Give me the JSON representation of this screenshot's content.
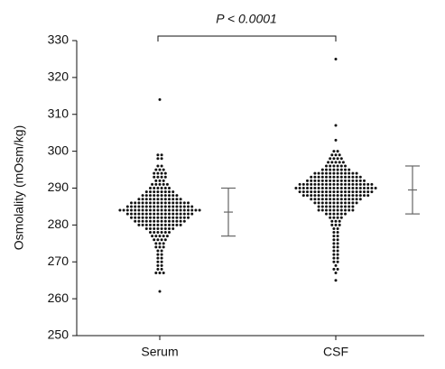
{
  "chart_data": {
    "type": "swarm",
    "ylabel": "Osmolality (mOsm/kg)",
    "annotation": "P < 0.0001",
    "categories": [
      "Serum",
      "CSF"
    ],
    "ylim": [
      250,
      330
    ],
    "yticks": [
      250,
      260,
      270,
      280,
      290,
      300,
      310,
      320,
      330
    ],
    "color": "#111111",
    "error_color": "#666666",
    "groups": [
      {
        "values": [
          262,
          267,
          267,
          267,
          268,
          268,
          269,
          269,
          270,
          270,
          271,
          271,
          272,
          272,
          273,
          273,
          274,
          274,
          274,
          275,
          275,
          275,
          276,
          276,
          276,
          276,
          277,
          277,
          277,
          277,
          277,
          278,
          278,
          278,
          278,
          278,
          278,
          279,
          279,
          279,
          279,
          279,
          279,
          279,
          279,
          280,
          280,
          280,
          280,
          280,
          280,
          280,
          280,
          280,
          280,
          280,
          280,
          281,
          281,
          281,
          281,
          281,
          281,
          281,
          281,
          281,
          281,
          281,
          281,
          281,
          281,
          282,
          282,
          282,
          282,
          282,
          282,
          282,
          282,
          282,
          282,
          282,
          282,
          282,
          282,
          282,
          282,
          283,
          283,
          283,
          283,
          283,
          283,
          283,
          283,
          283,
          283,
          283,
          283,
          283,
          283,
          283,
          283,
          283,
          283,
          284,
          284,
          284,
          284,
          284,
          284,
          284,
          284,
          284,
          284,
          284,
          284,
          284,
          284,
          284,
          284,
          284,
          284,
          284,
          284,
          284,
          284,
          285,
          285,
          285,
          285,
          285,
          285,
          285,
          285,
          285,
          285,
          285,
          285,
          285,
          285,
          285,
          285,
          285,
          285,
          286,
          286,
          286,
          286,
          286,
          286,
          286,
          286,
          286,
          286,
          286,
          286,
          286,
          286,
          286,
          286,
          287,
          287,
          287,
          287,
          287,
          287,
          287,
          287,
          287,
          287,
          287,
          287,
          288,
          288,
          288,
          288,
          288,
          288,
          288,
          288,
          288,
          288,
          289,
          289,
          289,
          289,
          289,
          289,
          289,
          289,
          290,
          290,
          290,
          290,
          290,
          290,
          291,
          291,
          291,
          291,
          291,
          292,
          292,
          292,
          293,
          293,
          293,
          293,
          294,
          294,
          294,
          294,
          295,
          295,
          295,
          296,
          296,
          298,
          298,
          299,
          299,
          314
        ],
        "mean": 283.5,
        "sd": 6.5
      },
      {
        "values": [
          265,
          267,
          268,
          268,
          269,
          270,
          270,
          271,
          271,
          272,
          272,
          273,
          273,
          274,
          274,
          275,
          275,
          276,
          276,
          277,
          277,
          278,
          278,
          279,
          279,
          280,
          280,
          280,
          281,
          281,
          281,
          282,
          282,
          282,
          282,
          283,
          283,
          283,
          283,
          283,
          283,
          284,
          284,
          284,
          284,
          284,
          284,
          284,
          284,
          284,
          284,
          285,
          285,
          285,
          285,
          285,
          285,
          285,
          285,
          285,
          285,
          286,
          286,
          286,
          286,
          286,
          286,
          286,
          286,
          286,
          286,
          286,
          286,
          287,
          287,
          287,
          287,
          287,
          287,
          287,
          287,
          287,
          287,
          287,
          287,
          287,
          287,
          288,
          288,
          288,
          288,
          288,
          288,
          288,
          288,
          288,
          288,
          288,
          288,
          288,
          288,
          288,
          288,
          288,
          288,
          289,
          289,
          289,
          289,
          289,
          289,
          289,
          289,
          289,
          289,
          289,
          289,
          289,
          289,
          289,
          289,
          289,
          289,
          289,
          289,
          290,
          290,
          290,
          290,
          290,
          290,
          290,
          290,
          290,
          290,
          290,
          290,
          290,
          290,
          290,
          290,
          290,
          290,
          290,
          290,
          290,
          290,
          291,
          291,
          291,
          291,
          291,
          291,
          291,
          291,
          291,
          291,
          291,
          291,
          291,
          291,
          291,
          291,
          291,
          291,
          291,
          291,
          292,
          292,
          292,
          292,
          292,
          292,
          292,
          292,
          292,
          292,
          292,
          292,
          292,
          292,
          292,
          292,
          293,
          293,
          293,
          293,
          293,
          293,
          293,
          293,
          293,
          293,
          293,
          293,
          293,
          293,
          294,
          294,
          294,
          294,
          294,
          294,
          294,
          294,
          294,
          294,
          294,
          294,
          295,
          295,
          295,
          295,
          295,
          295,
          295,
          295,
          296,
          296,
          296,
          296,
          296,
          296,
          297,
          297,
          297,
          297,
          297,
          298,
          298,
          298,
          298,
          299,
          299,
          299,
          300,
          300,
          303,
          307,
          325
        ],
        "mean": 289.5,
        "sd": 6.5
      }
    ]
  }
}
